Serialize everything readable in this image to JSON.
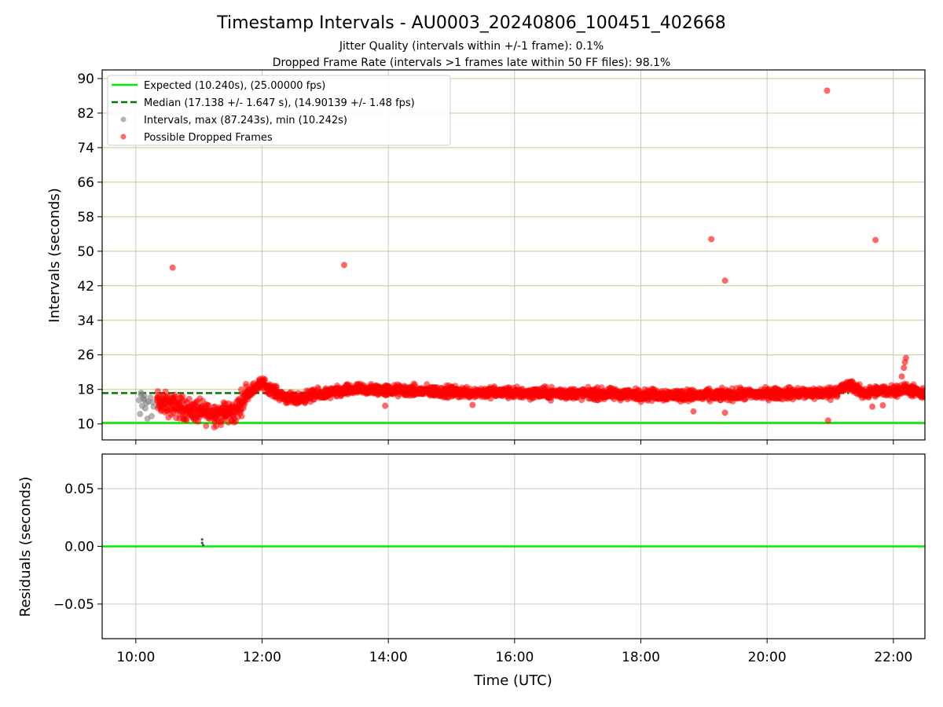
{
  "title": "Timestamp Intervals - AU0003_20240806_100451_402668",
  "subtitle_lines": [
    "Jitter Quality (intervals within +/-1 frame): 0.1%",
    "Dropped Frame Rate (intervals >1 frames late within 50 FF files): 98.1%"
  ],
  "colors": {
    "expected": "#00ee00",
    "median": "#007700",
    "intervals": "#808080",
    "dropped": "#ff0000",
    "hgrid_top": "#d4c48a",
    "grid": "#c8c8c8"
  },
  "chart_data": [
    {
      "type": "scatter",
      "panel": "intervals",
      "xlabel": "",
      "ylabel": "Intervals (seconds)",
      "xlim": [
        "09:28",
        "22:30"
      ],
      "ylim": [
        6.3,
        92
      ],
      "yticks": [
        10,
        18,
        26,
        34,
        42,
        50,
        58,
        66,
        74,
        82,
        90
      ],
      "ytick_labels": [
        "10",
        "18",
        "26",
        "34",
        "42",
        "50",
        "58",
        "66",
        "74",
        "82",
        "90"
      ],
      "grid": true,
      "legend_position": "top-left",
      "legend": [
        "Expected (10.240s), (25.00000 fps)",
        "Median (17.138 +/- 1.647 s), (14.90139 +/- 1.48 fps)",
        "Intervals, max (87.243s), min (10.242s)",
        "Possible Dropped Frames"
      ],
      "expected_line": {
        "y": 10.24
      },
      "median_line": {
        "y": 17.138,
        "x_range": [
          "09:28",
          "21:18"
        ]
      },
      "series": [
        {
          "name": "Intervals, max (87.243s), min (10.242s)",
          "x": [
            "10:03",
            "10:05",
            "10:06",
            "10:07",
            "10:08",
            "10:10",
            "10:12",
            "10:14",
            "10:04",
            "10:09",
            "10:11",
            "10:15",
            "10:16",
            "10:17",
            "10:05",
            "10:08"
          ],
          "y": [
            15.5,
            16.8,
            14.2,
            15.9,
            16.5,
            14.8,
            15.2,
            16.1,
            12.3,
            13.6,
            11.2,
            11.8,
            15.0,
            14.0,
            17.2,
            15.6
          ]
        },
        {
          "name": "Possible Dropped Frames",
          "trend": [
            [
              "10:20",
              15.0
            ],
            [
              "10:40",
              14.0
            ],
            [
              "11:00",
              12.8
            ],
            [
              "11:20",
              12.4
            ],
            [
              "11:35",
              12.8
            ],
            [
              "11:45",
              17.0
            ],
            [
              "12:00",
              19.5
            ],
            [
              "12:15",
              17.0
            ],
            [
              "12:30",
              15.5
            ],
            [
              "12:45",
              16.5
            ],
            [
              "13:00",
              17.0
            ],
            [
              "13:30",
              18.0
            ],
            [
              "14:00",
              17.8
            ],
            [
              "15:00",
              17.4
            ],
            [
              "16:00",
              17.2
            ],
            [
              "17:00",
              17.0
            ],
            [
              "18:00",
              16.8
            ],
            [
              "19:00",
              16.6
            ],
            [
              "20:00",
              17.0
            ],
            [
              "21:00",
              17.2
            ],
            [
              "21:20",
              19.0
            ],
            [
              "21:30",
              17.2
            ],
            [
              "22:00",
              17.8
            ],
            [
              "22:15",
              18.0
            ],
            [
              "22:30",
              16.5
            ]
          ],
          "outliers": [
            {
              "x": "10:35",
              "y": 46.2
            },
            {
              "x": "13:18",
              "y": 46.8
            },
            {
              "x": "19:07",
              "y": 52.8
            },
            {
              "x": "19:20",
              "y": 43.2
            },
            {
              "x": "20:57",
              "y": 87.2
            },
            {
              "x": "21:43",
              "y": 52.6
            },
            {
              "x": "20:58",
              "y": 10.8
            },
            {
              "x": "22:08",
              "y": 21.0
            },
            {
              "x": "22:10",
              "y": 23.0
            },
            {
              "x": "22:11",
              "y": 24.3
            },
            {
              "x": "22:12",
              "y": 25.3
            },
            {
              "x": "19:20",
              "y": 12.6
            },
            {
              "x": "18:50",
              "y": 12.9
            },
            {
              "x": "13:57",
              "y": 14.2
            },
            {
              "x": "15:20",
              "y": 14.4
            },
            {
              "x": "21:40",
              "y": 14.0
            },
            {
              "x": "21:50",
              "y": 14.3
            }
          ]
        }
      ],
      "xticks": [
        "10:00",
        "12:00",
        "14:00",
        "16:00",
        "18:00",
        "20:00",
        "22:00"
      ]
    },
    {
      "type": "scatter",
      "panel": "residuals",
      "xlabel": "Time (UTC)",
      "ylabel": "Residuals (seconds)",
      "xlim": [
        "09:28",
        "22:30"
      ],
      "ylim": [
        -0.08,
        0.08
      ],
      "yticks": [
        -0.05,
        0.0,
        0.05
      ],
      "ytick_labels": [
        "−0.05",
        "0.00",
        "0.05"
      ],
      "xticks": [
        "10:00",
        "12:00",
        "14:00",
        "16:00",
        "18:00",
        "20:00",
        "22:00"
      ],
      "xtick_labels": [
        "10:00",
        "12:00",
        "14:00",
        "16:00",
        "18:00",
        "20:00",
        "22:00"
      ],
      "grid": true,
      "zero_line": {
        "y": 0.0
      },
      "series": [
        {
          "name": "",
          "x": [
            "11:03",
            "11:03",
            "11:04"
          ],
          "y": [
            0.006,
            0.003,
            0.001
          ]
        }
      ]
    }
  ]
}
